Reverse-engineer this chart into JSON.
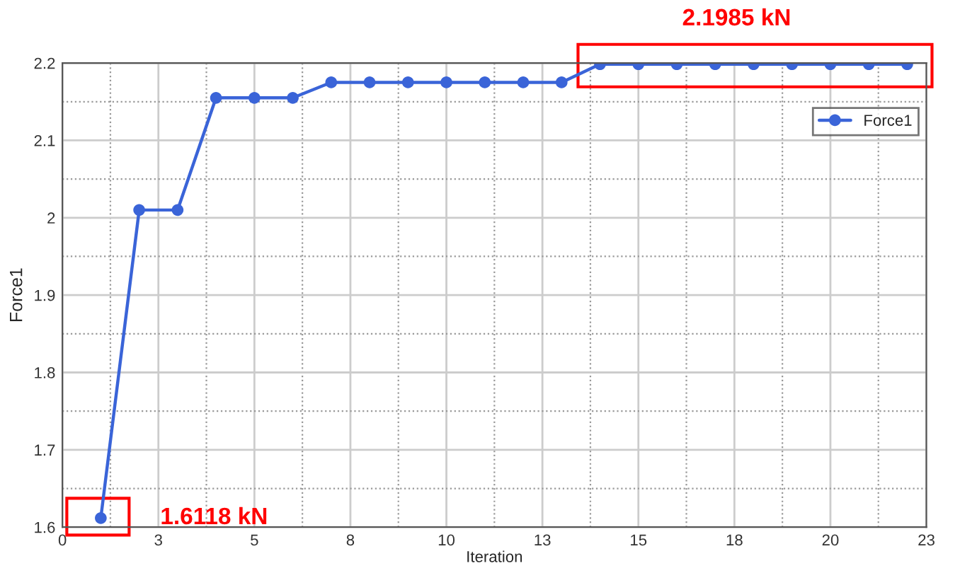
{
  "chart_data": {
    "type": "line",
    "xlabel": "Iteration",
    "ylabel": "Force1",
    "x": [
      1,
      2,
      3,
      4,
      5,
      6,
      7,
      8,
      9,
      10,
      11,
      12,
      13,
      14,
      15,
      16,
      17,
      18,
      19,
      20,
      21,
      22
    ],
    "series": [
      {
        "name": "Force1",
        "color": "#3a64d8",
        "values": [
          1.6118,
          2.01,
          2.01,
          2.155,
          2.155,
          2.155,
          2.175,
          2.175,
          2.175,
          2.175,
          2.175,
          2.175,
          2.175,
          2.1985,
          2.1985,
          2.1985,
          2.1985,
          2.1985,
          2.1985,
          2.1985,
          2.1985,
          2.1985
        ]
      }
    ],
    "xlim": [
      0,
      22.5
    ],
    "ylim": [
      1.6,
      2.2
    ],
    "xticks": [
      0,
      {
        "value": 2.5,
        "label": "3"
      },
      5,
      {
        "value": 7.5,
        "label": "8"
      },
      10,
      {
        "value": 12.5,
        "label": "13"
      },
      15,
      {
        "value": 17.5,
        "label": "18"
      },
      20,
      {
        "value": 22.5,
        "label": "23"
      }
    ],
    "yticks": [
      1.6,
      1.7,
      1.8,
      1.9,
      2,
      2.1,
      2.2
    ],
    "grid": true,
    "legend": "top right",
    "marker": "circle",
    "line_style": "solid",
    "annotations": [
      {
        "text": "1.6118 kN",
        "x": 1,
        "y": 1.6118
      },
      {
        "text": "2.1985 kN",
        "x": 18,
        "y": 2.1985
      }
    ]
  }
}
